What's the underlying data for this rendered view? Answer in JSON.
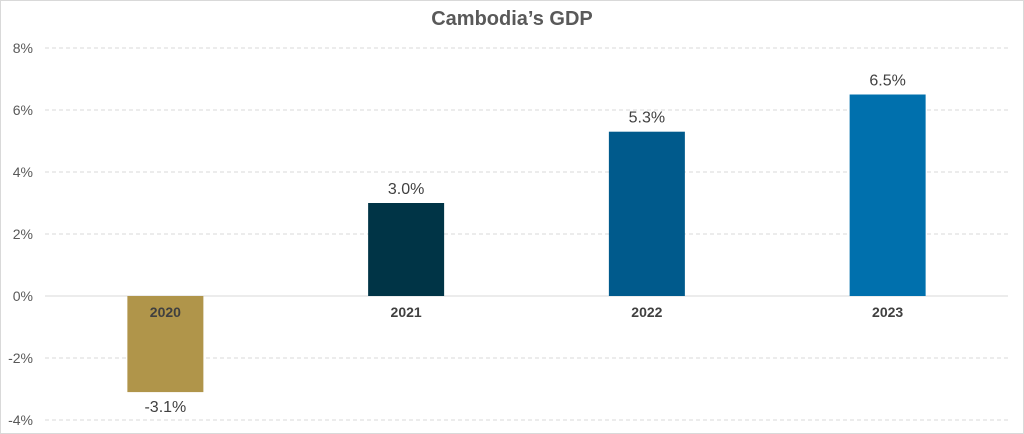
{
  "chart_data": {
    "type": "bar",
    "title": "Cambodia’s GDP",
    "categories": [
      "2020",
      "2021",
      "2022",
      "2023"
    ],
    "values": [
      -3.1,
      3.0,
      5.3,
      6.5
    ],
    "data_labels": [
      "-3.1%",
      "3.0%",
      "5.3%",
      "6.5%"
    ],
    "bar_colors": [
      "#B0954A",
      "#003446",
      "#005A8C",
      "#0070AD"
    ],
    "ylim": [
      -4,
      8
    ],
    "y_ticks": [
      8,
      6,
      4,
      2,
      0,
      -2,
      -4
    ],
    "y_tick_labels": [
      "8%",
      "6%",
      "4%",
      "2%",
      "0%",
      "-2%",
      "-4%"
    ],
    "grid": true,
    "grid_color": "#d9d9d9",
    "axis_color": "#d9d9d9",
    "legend": "none"
  }
}
